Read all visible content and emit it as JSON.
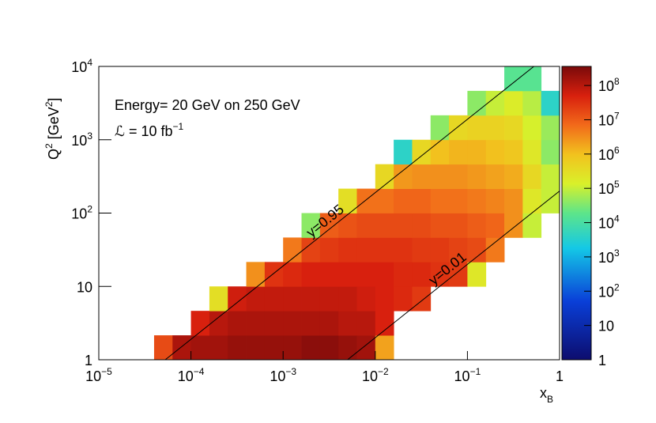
{
  "chart_data": {
    "type": "heatmap",
    "annotations": [
      "Energy= 20 GeV on 250 GeV"
    ],
    "luminosity": {
      "text": "ℒ = 10 fb",
      "exponent": "−1"
    },
    "xlabel": [
      "x",
      "B"
    ],
    "ylabel": [
      "Q",
      "2",
      " [GeV",
      "2",
      "]"
    ],
    "xlog": true,
    "ylog": true,
    "zlog": true,
    "xlim": [
      1e-05,
      1
    ],
    "ylim": [
      1,
      10000
    ],
    "zlim": [
      1,
      360000000
    ],
    "xticks": [
      {
        "value": 1e-05,
        "label": "10",
        "exponent": "−5"
      },
      {
        "value": 0.0001,
        "label": "10",
        "exponent": "−4"
      },
      {
        "value": 0.001,
        "label": "10",
        "exponent": "−3"
      },
      {
        "value": 0.01,
        "label": "10",
        "exponent": "−2"
      },
      {
        "value": 0.1,
        "label": "10",
        "exponent": "−1"
      },
      1
    ],
    "yticks": [
      1,
      10,
      {
        "value": 100,
        "label": "10",
        "exponent": "2"
      },
      {
        "value": 1000,
        "label": "10",
        "exponent": "3"
      },
      {
        "value": 10000,
        "label": "10",
        "exponent": "4"
      }
    ],
    "zticks": [
      1,
      10,
      {
        "value": 100,
        "label": "10",
        "exponent": "2"
      },
      {
        "value": 1000,
        "label": "10",
        "exponent": "3"
      },
      {
        "value": 10000,
        "label": "10",
        "exponent": "4"
      },
      {
        "value": 100000,
        "label": "10",
        "exponent": "5"
      },
      {
        "value": 1000000,
        "label": "10",
        "exponent": "6"
      },
      {
        "value": 10000000,
        "label": "10",
        "exponent": "7"
      },
      {
        "value": 100000000,
        "label": "10",
        "exponent": "8"
      }
    ],
    "colormap": [
      [
        0,
        "#0d0d6e"
      ],
      [
        0.2,
        "#0a3fd8"
      ],
      [
        0.38,
        "#14c8e6"
      ],
      [
        0.5,
        "#5de58a"
      ],
      [
        0.6,
        "#d9f02a"
      ],
      [
        0.7,
        "#f2c21e"
      ],
      [
        0.8,
        "#f26a1a"
      ],
      [
        0.9,
        "#d8200e"
      ],
      [
        1,
        "#7a0a0a"
      ]
    ],
    "xbins": [
      1e-05,
      1.585e-05,
      2.512e-05,
      3.981e-05,
      6.31e-05,
      0.0001,
      0.0001585,
      0.0002512,
      0.0003981,
      0.000631,
      0.001,
      0.001585,
      0.002512,
      0.003981,
      0.00631,
      0.01,
      0.01585,
      0.02512,
      0.03981,
      0.0631,
      0.1,
      0.1585,
      0.2512,
      0.3981,
      0.631,
      1
    ],
    "ybins": [
      1,
      2.154,
      4.642,
      10,
      21.54,
      46.42,
      100,
      215.4,
      464.2,
      1000,
      2154,
      4642,
      10000
    ],
    "z": [
      [
        null,
        null,
        null,
        16000000.0,
        130000000.0,
        160000000.0,
        160000000.0,
        200000000.0,
        200000000.0,
        200000000.0,
        200000000.0,
        250000000.0,
        250000000.0,
        200000000.0,
        160000000.0,
        2000000.0,
        null,
        null,
        null,
        null,
        null,
        null,
        null,
        null,
        null
      ],
      [
        null,
        null,
        null,
        null,
        null,
        50000000.0,
        100000000.0,
        130000000.0,
        130000000.0,
        130000000.0,
        130000000.0,
        130000000.0,
        130000000.0,
        100000000.0,
        100000000.0,
        50000000.0,
        null,
        null,
        null,
        null,
        null,
        null,
        null,
        null,
        null
      ],
      [
        null,
        null,
        null,
        null,
        null,
        null,
        300000.0,
        60000000.0,
        80000000.0,
        80000000.0,
        80000000.0,
        80000000.0,
        80000000.0,
        80000000.0,
        60000000.0,
        50000000.0,
        40000000.0,
        25000000.0,
        null,
        null,
        null,
        null,
        null,
        null,
        null
      ],
      [
        null,
        null,
        null,
        null,
        null,
        null,
        null,
        null,
        3000000.0,
        30000000.0,
        40000000.0,
        50000000.0,
        50000000.0,
        50000000.0,
        50000000.0,
        50000000.0,
        40000000.0,
        40000000.0,
        30000000.0,
        25000000.0,
        200000.0,
        null,
        null,
        null,
        null
      ],
      [
        null,
        null,
        null,
        null,
        null,
        null,
        null,
        null,
        null,
        null,
        5000000.0,
        20000000.0,
        25000000.0,
        30000000.0,
        30000000.0,
        30000000.0,
        30000000.0,
        25000000.0,
        25000000.0,
        20000000.0,
        16000000.0,
        5000000.0,
        null,
        null,
        null
      ],
      [
        null,
        null,
        null,
        null,
        null,
        null,
        null,
        null,
        null,
        null,
        null,
        40000.0,
        10000000.0,
        13000000.0,
        16000000.0,
        16000000.0,
        16000000.0,
        16000000.0,
        13000000.0,
        13000000.0,
        10000000.0,
        8000000.0,
        3000000.0,
        100000.0,
        null
      ],
      [
        null,
        null,
        null,
        null,
        null,
        null,
        null,
        null,
        null,
        null,
        null,
        null,
        null,
        300000.0,
        6000000.0,
        6000000.0,
        8000000.0,
        8000000.0,
        6000000.0,
        6000000.0,
        5000000.0,
        4000000.0,
        3000000.0,
        200000.0,
        100000.0
      ],
      [
        null,
        null,
        null,
        null,
        null,
        null,
        null,
        null,
        null,
        null,
        null,
        null,
        null,
        null,
        null,
        400000.0,
        2500000.0,
        3000000.0,
        3000000.0,
        3000000.0,
        2500000.0,
        2000000.0,
        1600000.0,
        400000.0,
        100000.0
      ],
      [
        null,
        null,
        null,
        null,
        null,
        null,
        null,
        null,
        null,
        null,
        null,
        null,
        null,
        null,
        null,
        null,
        4000.0,
        400000.0,
        1000000.0,
        1300000.0,
        1300000.0,
        1000000.0,
        800000.0,
        200000.0,
        40000.0
      ],
      [
        null,
        null,
        null,
        null,
        null,
        null,
        null,
        null,
        null,
        null,
        null,
        null,
        null,
        null,
        null,
        null,
        null,
        null,
        40000.0,
        400000.0,
        500000.0,
        500000.0,
        400000.0,
        130000.0,
        50000.0
      ],
      [
        null,
        null,
        null,
        null,
        null,
        null,
        null,
        null,
        null,
        null,
        null,
        null,
        null,
        null,
        null,
        null,
        null,
        null,
        null,
        null,
        40000.0,
        100000.0,
        160000.0,
        80000.0,
        4000.0
      ],
      [
        null,
        null,
        null,
        null,
        null,
        null,
        null,
        null,
        null,
        null,
        null,
        null,
        null,
        null,
        null,
        null,
        null,
        null,
        null,
        null,
        null,
        null,
        16000.0,
        16000.0,
        null
      ]
    ],
    "lines": [
      {
        "label": "y=0.95",
        "x": [
          5.26e-05,
          0.526
        ],
        "y": [
          1,
          10000
        ]
      },
      {
        "label": "y=0.01",
        "x": [
          0.005,
          1
        ],
        "y": [
          1,
          200
        ]
      }
    ]
  }
}
